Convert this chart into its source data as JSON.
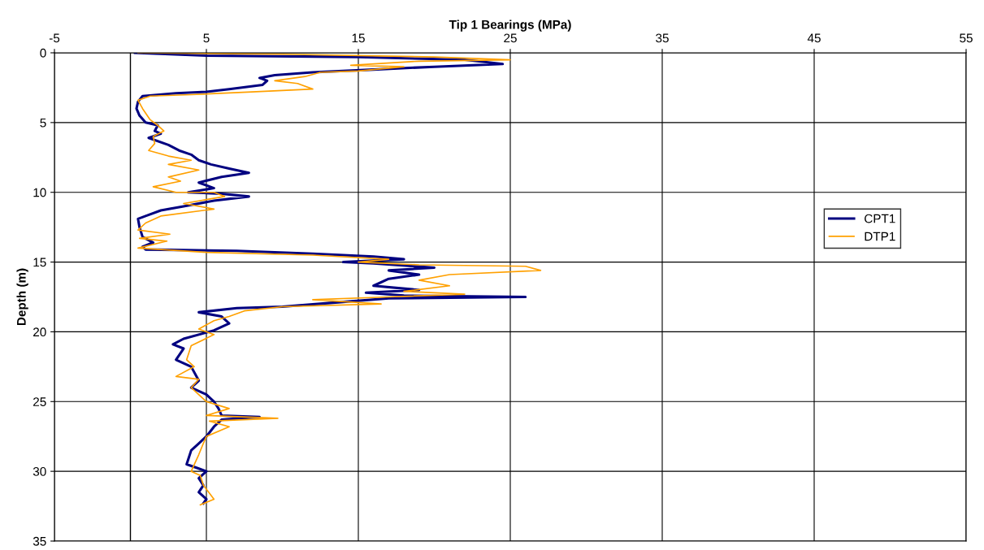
{
  "chart_data": {
    "type": "line",
    "xlabel": "Tip 1 Bearings (MPa)",
    "ylabel": "Depth (m)",
    "xlim": [
      -5,
      55
    ],
    "xticks": [
      -5,
      5,
      15,
      25,
      35,
      45,
      55
    ],
    "ylim": [
      35,
      0
    ],
    "yticks": [
      0,
      5,
      10,
      15,
      20,
      25,
      30,
      35
    ],
    "grid": true,
    "legend": "right",
    "ref_lines": [
      {
        "axis": "x",
        "value": 0,
        "color": "#000000"
      }
    ],
    "series": [
      {
        "name": "CPT1",
        "color": "#000080",
        "x": [
          0.3,
          5,
          15,
          22,
          24.5,
          20,
          16,
          12,
          9.5,
          8.5,
          9,
          8.7,
          6.5,
          5,
          3,
          0.8,
          0.5,
          0.4,
          0.6,
          1.0,
          1.8,
          1.6,
          2.0,
          1.2,
          2.5,
          3.2,
          4.0,
          4.5,
          5.3,
          6.5,
          7.8,
          6.0,
          4.5,
          5.5,
          3.8,
          6.0,
          7.8,
          5.5,
          3.5,
          2.0,
          1.0,
          0.5,
          0.6,
          0.8,
          1.5,
          0.8,
          1.0,
          7,
          12,
          16,
          18,
          14,
          16,
          20,
          17,
          19,
          17,
          16,
          19,
          15.5,
          18,
          26,
          17,
          13.5,
          10,
          7,
          4.5,
          6,
          6.5,
          5.5,
          3.5,
          2.8,
          3.5,
          3,
          4,
          4.5,
          4,
          5,
          5.5,
          5.8,
          6,
          8.5,
          6,
          5.5,
          5,
          4.5,
          4,
          3.7,
          4.5,
          5,
          4.5,
          4.8,
          4.5,
          5,
          4.8
        ],
        "values": [
          0.0,
          0.2,
          0.3,
          0.5,
          0.8,
          1.0,
          1.2,
          1.4,
          1.6,
          1.8,
          2.0,
          2.3,
          2.6,
          2.8,
          2.9,
          3.1,
          3.5,
          4.0,
          4.5,
          5.0,
          5.2,
          5.6,
          5.8,
          6.1,
          6.6,
          7.0,
          7.3,
          7.7,
          8.0,
          8.3,
          8.6,
          8.9,
          9.3,
          9.7,
          10.0,
          10.1,
          10.3,
          10.6,
          11.0,
          11.3,
          11.7,
          11.9,
          12.5,
          13.2,
          13.6,
          13.9,
          14.1,
          14.2,
          14.4,
          14.6,
          14.8,
          15.0,
          15.1,
          15.4,
          15.6,
          15.9,
          16.2,
          16.7,
          17.0,
          17.2,
          17.4,
          17.5,
          17.6,
          17.9,
          18.2,
          18.3,
          18.6,
          18.9,
          19.4,
          19.9,
          20.5,
          20.9,
          21.2,
          22.0,
          22.5,
          23.5,
          24.0,
          24.5,
          25.0,
          25.5,
          26.0,
          26.1,
          26.3,
          26.8,
          27.5,
          28.0,
          28.5,
          29.5,
          29.8,
          30.0,
          30.5,
          31.0,
          31.5,
          32.0,
          32.3
        ]
      },
      {
        "name": "DTP1",
        "color": "#ffa000",
        "x": [
          0.5,
          10,
          20,
          25,
          19,
          14.5,
          18,
          15,
          12.5,
          11.5,
          9.5,
          11,
          12,
          8,
          4,
          1.3,
          0.5,
          0.8,
          1.3,
          1.8,
          2.2,
          1.5,
          1.6,
          1.2,
          2.5,
          4,
          2.5,
          4.5,
          2.5,
          3.3,
          1.5,
          3,
          5.5,
          6.2,
          3.5,
          5.5,
          2.0,
          1.0,
          0.5,
          2.6,
          0.6,
          2.4,
          0.5,
          5,
          12,
          17,
          15,
          19,
          26,
          27,
          21,
          19,
          21,
          18,
          22,
          17,
          12,
          16.5,
          10,
          7.5,
          6.5,
          5.5,
          4.5,
          5.5,
          4,
          3.7,
          4.2,
          3,
          4.5,
          4,
          5,
          6.5,
          5,
          9.7,
          5.2,
          6.5,
          5,
          4.8,
          4.5,
          4,
          4.6,
          4.8,
          5.5,
          4.6
        ],
        "values": [
          0.0,
          0.1,
          0.3,
          0.5,
          0.6,
          0.9,
          1.0,
          1.3,
          1.4,
          1.7,
          2.0,
          2.2,
          2.6,
          2.8,
          3.0,
          3.1,
          3.4,
          4.0,
          4.8,
          5.2,
          5.6,
          6.0,
          6.5,
          7.0,
          7.4,
          7.7,
          8.0,
          8.4,
          8.9,
          9.2,
          9.6,
          10.0,
          10.0,
          10.3,
          10.8,
          11.2,
          11.7,
          12.2,
          12.7,
          13.0,
          13.3,
          13.5,
          14.0,
          14.3,
          14.5,
          14.8,
          15.0,
          15.2,
          15.3,
          15.6,
          15.9,
          16.3,
          16.7,
          17.1,
          17.3,
          17.5,
          17.7,
          18.0,
          18.2,
          18.5,
          18.9,
          19.2,
          19.8,
          20.2,
          21.0,
          22.0,
          22.5,
          23.2,
          23.4,
          24.0,
          25.0,
          25.5,
          26.0,
          26.2,
          26.4,
          26.8,
          27.5,
          28.0,
          28.8,
          30.0,
          30.3,
          31.0,
          32.0,
          32.4
        ]
      }
    ]
  }
}
